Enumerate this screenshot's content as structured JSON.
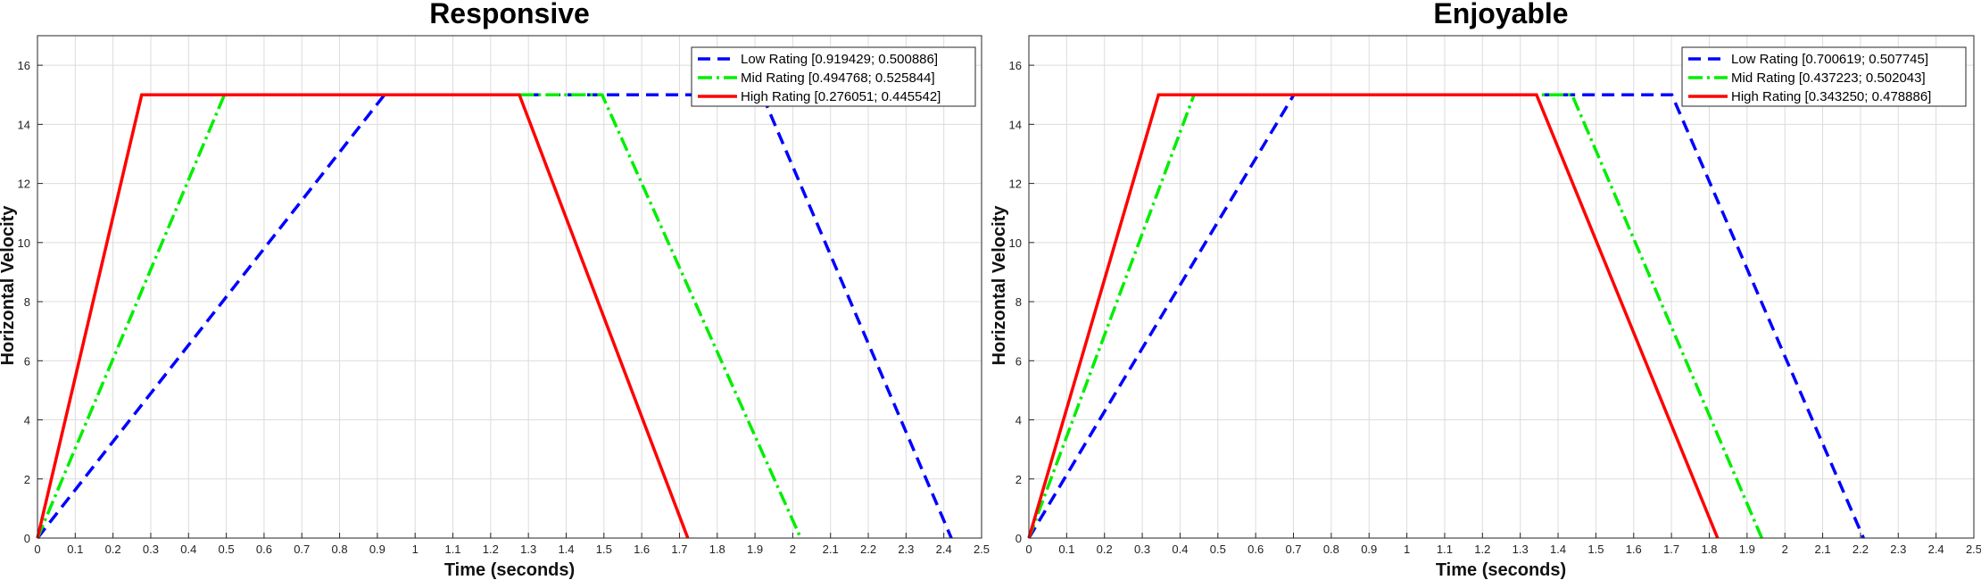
{
  "chart_data": [
    {
      "type": "line",
      "title": "Responsive",
      "xlabel": "Time (seconds)",
      "ylabel": "Horizontal Velocity",
      "xlim": [
        0,
        2.5
      ],
      "ylim": [
        0,
        17
      ],
      "xticks": [
        0,
        0.1,
        0.2,
        0.3,
        0.4,
        0.5,
        0.6,
        0.7,
        0.8,
        0.9,
        1,
        1.1,
        1.2,
        1.3,
        1.4,
        1.5,
        1.6,
        1.7,
        1.8,
        1.9,
        2,
        2.1,
        2.2,
        2.3,
        2.4,
        2.5
      ],
      "yticks": [
        0,
        2,
        4,
        6,
        8,
        10,
        12,
        14,
        16
      ],
      "grid": true,
      "legend_position": "top-right",
      "series": [
        {
          "name": "Low Rating [0.919429; 0.500886]",
          "color": "#0000ff",
          "style": "dashed",
          "x": [
            0,
            0.919,
            1.919,
            2.42
          ],
          "y": [
            0,
            15,
            15,
            0
          ]
        },
        {
          "name": "Mid Rating [0.494768; 0.525844]",
          "color": "#00ee00",
          "style": "dashdot",
          "x": [
            0,
            0.495,
            1.495,
            2.021
          ],
          "y": [
            0,
            15,
            15,
            0
          ]
        },
        {
          "name": "High Rating [0.276051; 0.445542]",
          "color": "#ff0000",
          "style": "solid",
          "x": [
            0,
            0.276,
            1.276,
            1.722
          ],
          "y": [
            0,
            15,
            15,
            0
          ]
        }
      ]
    },
    {
      "type": "line",
      "title": "Enjoyable",
      "xlabel": "Time (seconds)",
      "ylabel": "Horizontal Velocity",
      "xlim": [
        0,
        2.5
      ],
      "ylim": [
        0,
        17
      ],
      "xticks": [
        0,
        0.1,
        0.2,
        0.3,
        0.4,
        0.5,
        0.6,
        0.7,
        0.8,
        0.9,
        1,
        1.1,
        1.2,
        1.3,
        1.4,
        1.5,
        1.6,
        1.7,
        1.8,
        1.9,
        2,
        2.1,
        2.2,
        2.3,
        2.4,
        2.5
      ],
      "yticks": [
        0,
        2,
        4,
        6,
        8,
        10,
        12,
        14,
        16
      ],
      "grid": true,
      "legend_position": "top-right",
      "series": [
        {
          "name": "Low Rating [0.700619; 0.507745]",
          "color": "#0000ff",
          "style": "dashed",
          "x": [
            0,
            0.701,
            1.701,
            2.208
          ],
          "y": [
            0,
            15,
            15,
            0
          ]
        },
        {
          "name": "Mid Rating [0.437223; 0.502043]",
          "color": "#00ee00",
          "style": "dashdot",
          "x": [
            0,
            0.437,
            1.437,
            1.939
          ],
          "y": [
            0,
            15,
            15,
            0
          ]
        },
        {
          "name": "High Rating [0.343250; 0.478886]",
          "color": "#ff0000",
          "style": "solid",
          "x": [
            0,
            0.343,
            1.343,
            1.822
          ],
          "y": [
            0,
            15,
            15,
            0
          ]
        }
      ]
    }
  ]
}
